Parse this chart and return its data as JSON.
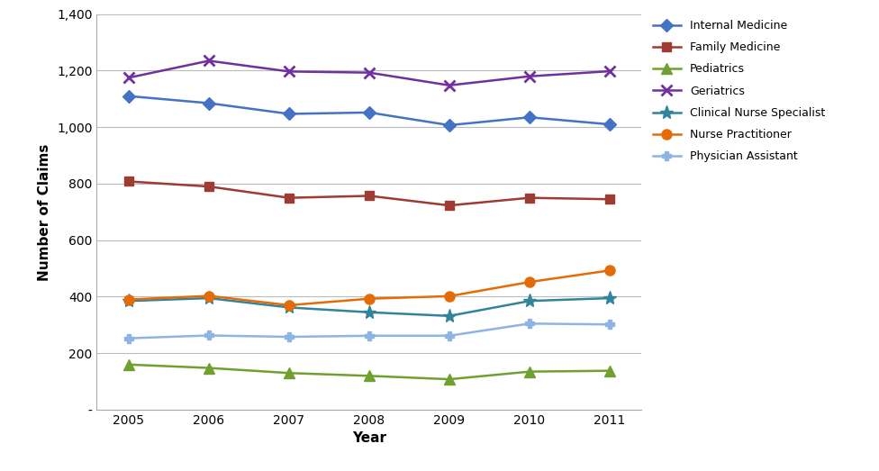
{
  "years": [
    2005,
    2006,
    2007,
    2008,
    2009,
    2010,
    2011
  ],
  "series": {
    "Internal Medicine": {
      "values": [
        1110,
        1085,
        1047,
        1052,
        1007,
        1035,
        1010
      ],
      "color": "#4472C4",
      "marker": "D",
      "marker_size": 7,
      "linewidth": 1.8
    },
    "Family Medicine": {
      "values": [
        808,
        790,
        750,
        757,
        723,
        750,
        745
      ],
      "color": "#9E3B33",
      "marker": "s",
      "marker_size": 7,
      "linewidth": 1.8
    },
    "Pediatrics": {
      "values": [
        160,
        148,
        130,
        120,
        108,
        135,
        138
      ],
      "color": "#70A030",
      "marker": "^",
      "marker_size": 8,
      "linewidth": 1.8
    },
    "Geriatrics": {
      "values": [
        1175,
        1235,
        1197,
        1193,
        1148,
        1180,
        1198
      ],
      "color": "#7030A0",
      "marker": "x",
      "marker_size": 9,
      "linewidth": 1.8,
      "markeredgewidth": 2.0
    },
    "Clinical Nurse Specialist": {
      "values": [
        385,
        395,
        362,
        345,
        332,
        385,
        395
      ],
      "color": "#31849B",
      "marker": "*",
      "marker_size": 11,
      "linewidth": 1.8
    },
    "Nurse Practitioner": {
      "values": [
        390,
        403,
        370,
        393,
        402,
        452,
        493
      ],
      "color": "#E36C09",
      "marker": "o",
      "marker_size": 8,
      "linewidth": 1.8
    },
    "Physician Assistant": {
      "values": [
        253,
        263,
        258,
        262,
        262,
        305,
        302
      ],
      "color": "#8DB4E2",
      "marker": "P",
      "marker_size": 7,
      "linewidth": 1.8
    }
  },
  "legend_order": [
    "Internal Medicine",
    "Family Medicine",
    "Pediatrics",
    "Geriatrics",
    "Clinical Nurse Specialist",
    "Nurse Practitioner",
    "Physician Assistant"
  ],
  "xlabel": "Year",
  "ylabel": "Number of Claims",
  "ylim": [
    0,
    1400
  ],
  "yticks": [
    0,
    200,
    400,
    600,
    800,
    1000,
    1200,
    1400
  ],
  "ytick_labels": [
    "-",
    "200",
    "400",
    "600",
    "800",
    "1,000",
    "1,200",
    "1,400"
  ],
  "background_color": "#FFFFFF",
  "plot_bg_color": "#FFFFFF",
  "grid_color": "#BBBBBB",
  "figsize": [
    9.76,
    5.23
  ],
  "dpi": 100
}
